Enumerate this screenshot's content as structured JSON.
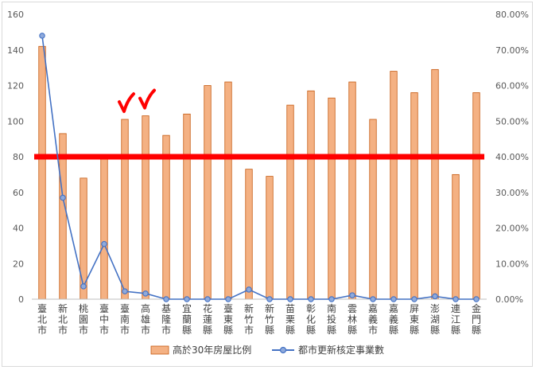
{
  "chart_data": {
    "type": "bar+line",
    "title": "",
    "categories": [
      "臺北市",
      "新北市",
      "桃園市",
      "臺中市",
      "臺南市",
      "高雄市",
      "基隆市",
      "宜蘭縣",
      "花蓮縣",
      "臺東縣",
      "新竹市",
      "新竹縣",
      "苗栗縣",
      "彰化縣",
      "南投縣",
      "雲林縣",
      "嘉義市",
      "嘉義縣",
      "屏東縣",
      "澎湖縣",
      "連江縣",
      "金門縣"
    ],
    "series": [
      {
        "name": "高於30年房屋比例",
        "kind": "bar",
        "axis": "left",
        "color": "#f4b183",
        "values": [
          142,
          93,
          68,
          80,
          101,
          103,
          92,
          104,
          120,
          122,
          73,
          69,
          109,
          117,
          113,
          122,
          101,
          128,
          116,
          129,
          70,
          116
        ]
      },
      {
        "name": "都市更新核定事業數",
        "kind": "line",
        "axis": "right",
        "color": "#4472c4",
        "values": [
          0.74,
          0.285,
          0.036,
          0.155,
          0.022,
          0.016,
          0.0,
          0.0,
          0.0,
          0.0,
          0.027,
          0.0,
          0.0,
          0.0,
          0.0,
          0.011,
          0.0,
          0.0,
          0.0,
          0.008,
          0.0,
          0.0
        ]
      }
    ],
    "left_axis": {
      "min": 0,
      "max": 160,
      "step": 20,
      "ticks": [
        "0",
        "20",
        "40",
        "60",
        "80",
        "100",
        "120",
        "140",
        "160"
      ]
    },
    "right_axis": {
      "min": 0,
      "max": 0.8,
      "step": 0.1,
      "ticks": [
        "0.00%",
        "10.00%",
        "20.00%",
        "30.00%",
        "40.00%",
        "50.00%",
        "60.00%",
        "70.00%",
        "80.00%"
      ]
    },
    "reference_line": {
      "value": 80,
      "axis": "left",
      "color": "#ff0000"
    },
    "annotations": [
      {
        "type": "checkmark",
        "category": "臺南市",
        "color": "#ff0000"
      },
      {
        "type": "checkmark",
        "category": "高雄市",
        "color": "#ff0000"
      }
    ],
    "legend": {
      "position": "bottom"
    },
    "grid": false
  }
}
